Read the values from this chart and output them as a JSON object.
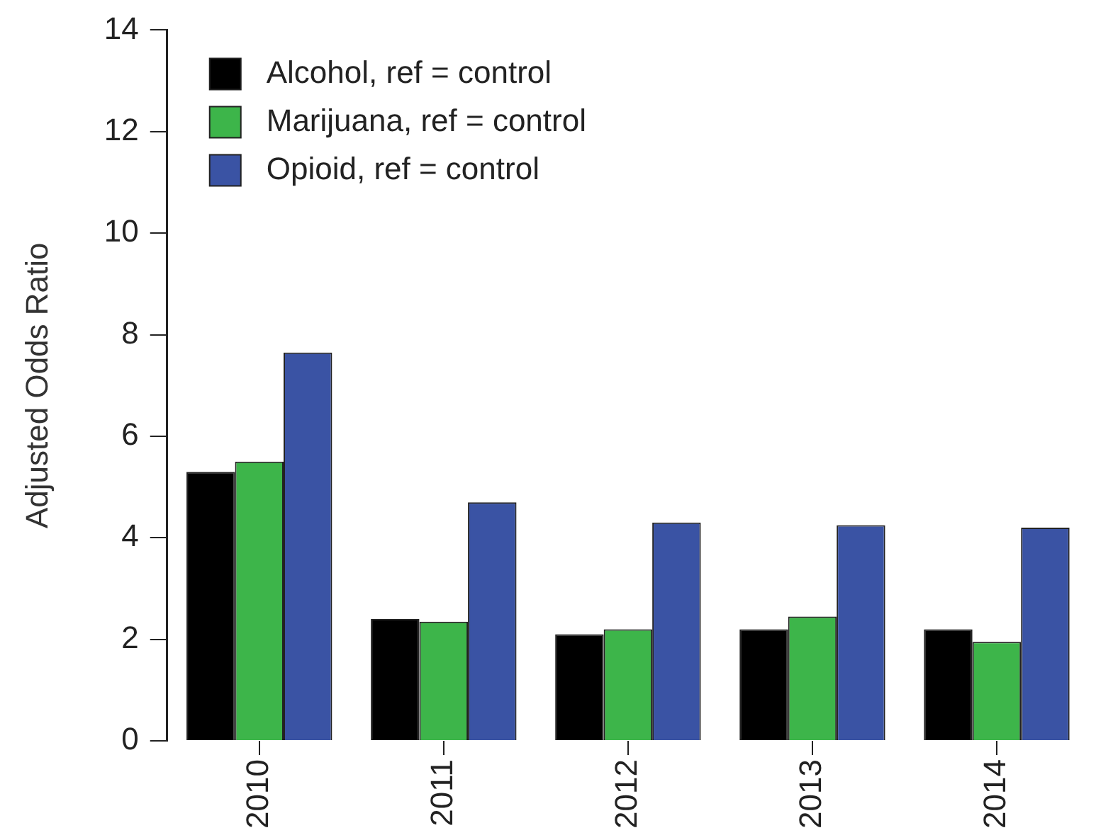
{
  "chart_data": {
    "type": "bar",
    "ylabel": "Adjusted Odds Ratio",
    "categories": [
      "2010",
      "2011",
      "2012",
      "2013",
      "2014"
    ],
    "series": [
      {
        "name": "Alcohol, ref = control",
        "color": "#000000",
        "values": [
          5.3,
          2.4,
          2.1,
          2.2,
          2.2
        ]
      },
      {
        "name": "Marijuana, ref = control",
        "color": "#3db54a",
        "values": [
          5.5,
          2.35,
          2.2,
          2.45,
          1.95
        ]
      },
      {
        "name": "Opioid, ref = control",
        "color": "#3a53a4",
        "values": [
          7.65,
          4.7,
          4.3,
          4.25,
          4.2
        ]
      }
    ],
    "ylim": [
      0,
      14
    ],
    "yticks": [
      0,
      2,
      4,
      6,
      8,
      10,
      12,
      14
    ],
    "grid": false,
    "legend": "top left"
  }
}
